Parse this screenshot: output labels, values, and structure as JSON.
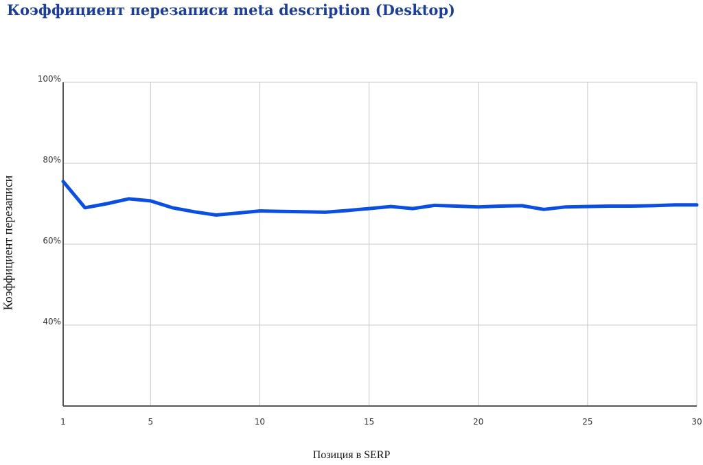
{
  "chart_data": {
    "type": "line",
    "title": "Коэффициент перезаписи meta description (Desktop)",
    "xlabel": "Позиция в SERP",
    "ylabel": "Коэффициент перезаписи",
    "xlim": [
      1,
      30
    ],
    "ylim": [
      20,
      100
    ],
    "xticks": [
      1,
      5,
      10,
      15,
      20,
      25,
      30
    ],
    "yticks": [
      40,
      60,
      80,
      100
    ],
    "ytick_suffix": "%",
    "grid": true,
    "series_color": "#0a4fe0",
    "x": [
      1,
      2,
      3,
      4,
      5,
      6,
      7,
      8,
      9,
      10,
      11,
      12,
      13,
      14,
      15,
      16,
      17,
      18,
      19,
      20,
      21,
      22,
      23,
      24,
      25,
      26,
      27,
      28,
      29,
      30
    ],
    "values": [
      75.5,
      69.0,
      70.0,
      71.2,
      70.7,
      69.0,
      68.0,
      67.2,
      67.7,
      68.2,
      68.1,
      68.0,
      67.9,
      68.3,
      68.8,
      69.3,
      68.8,
      69.6,
      69.4,
      69.2,
      69.4,
      69.5,
      68.6,
      69.2,
      69.3,
      69.4,
      69.4,
      69.5,
      69.7,
      69.7
    ]
  }
}
